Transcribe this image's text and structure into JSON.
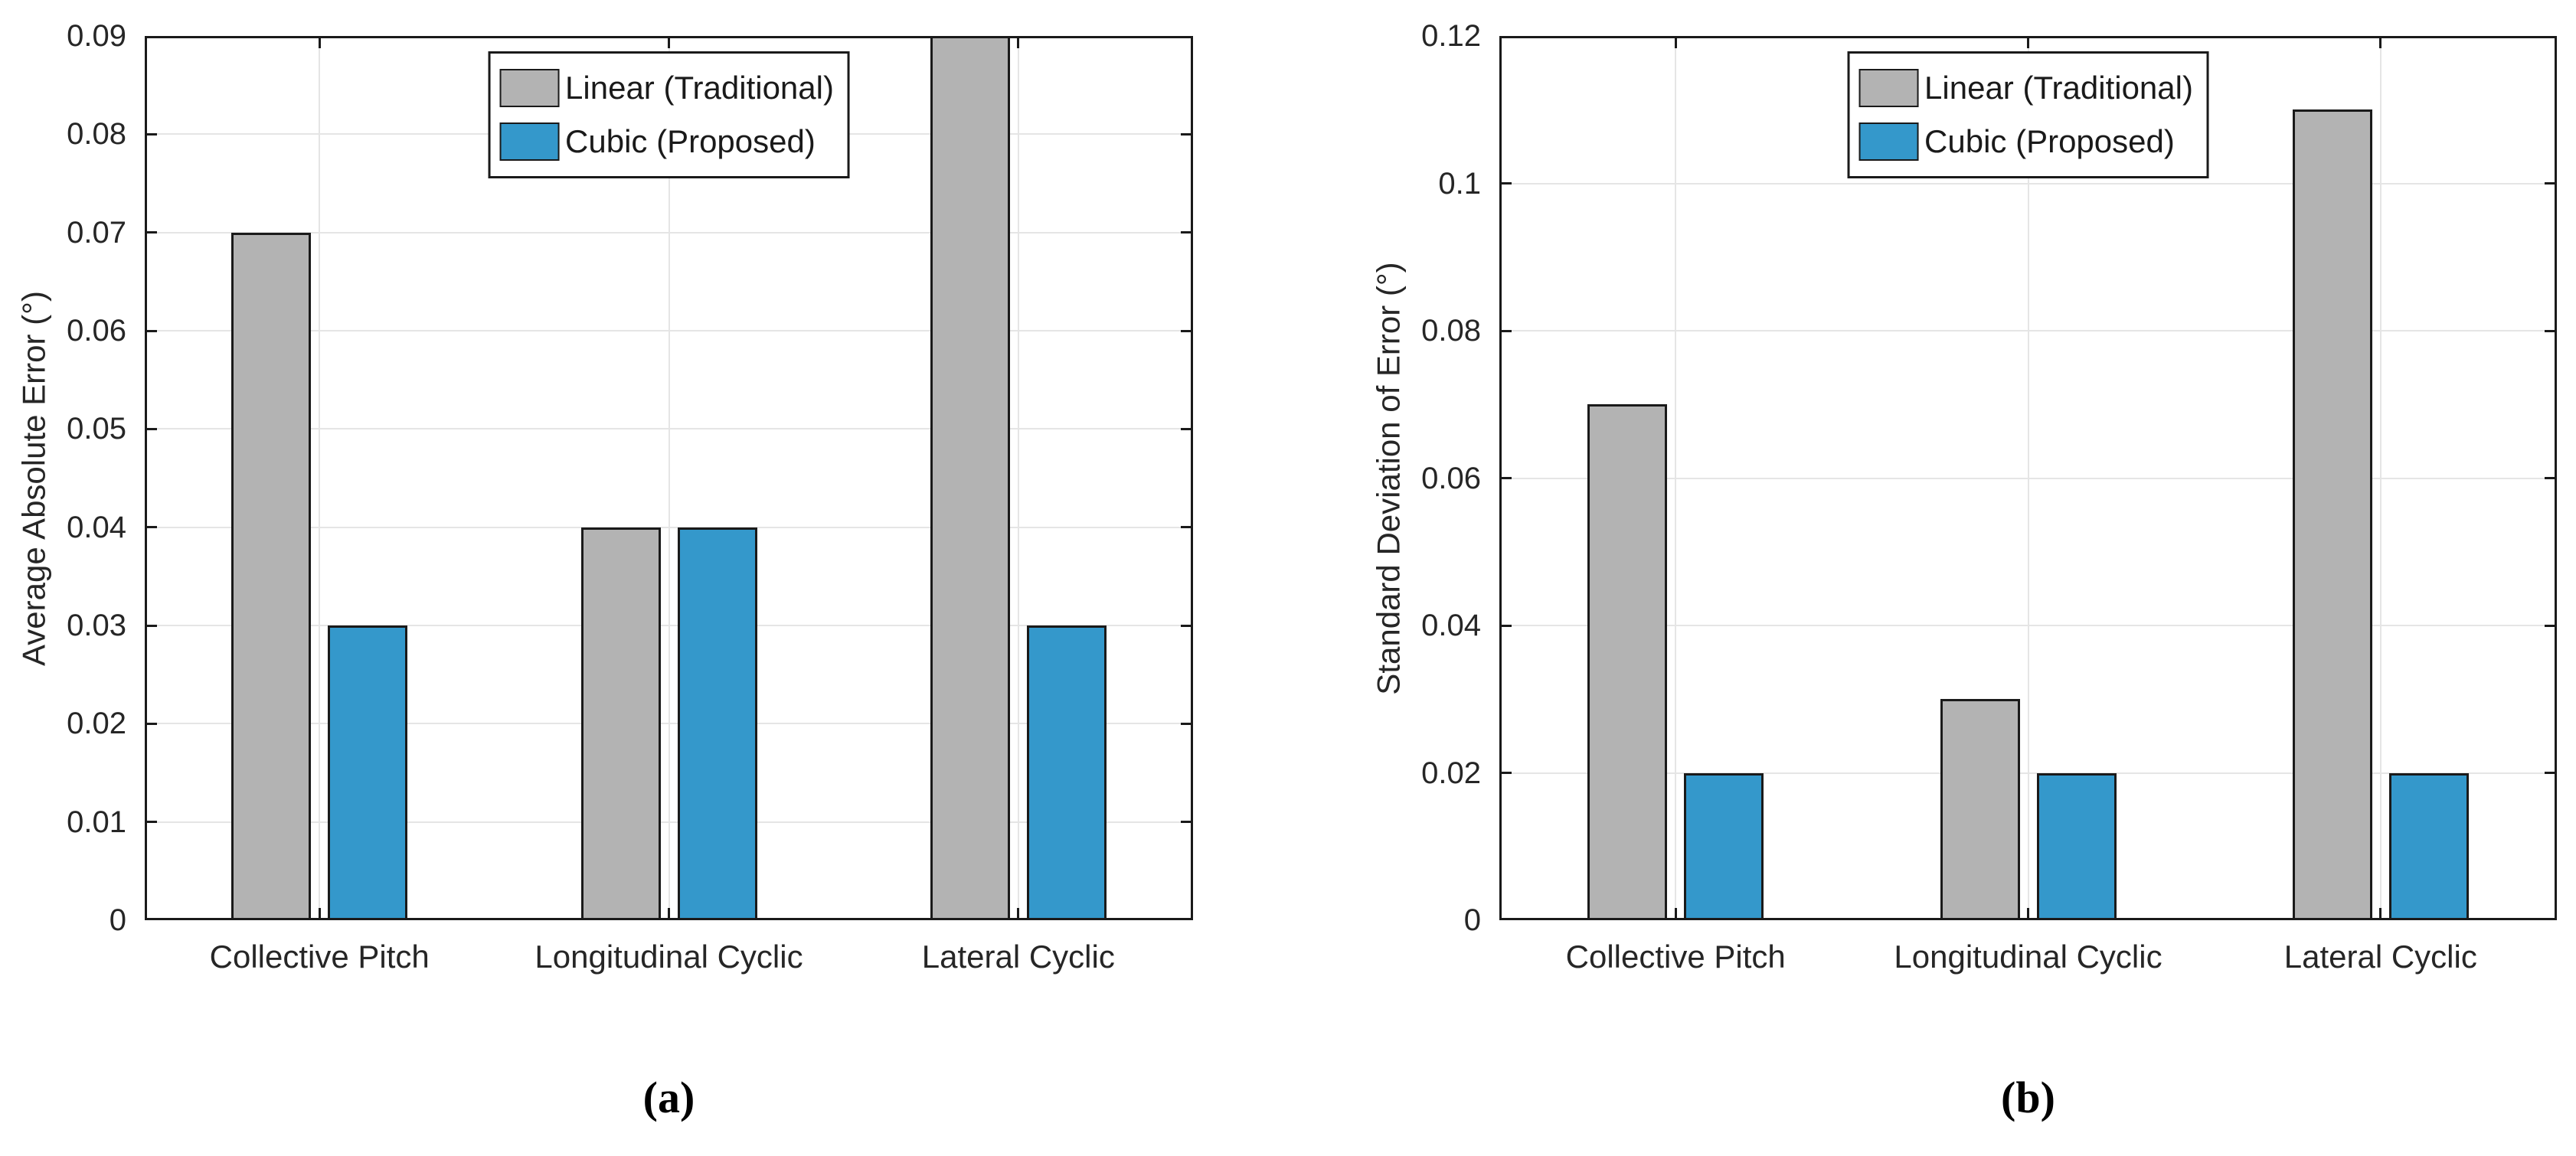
{
  "figure": {
    "captions": {
      "a": "(a)",
      "b": "(b)"
    }
  },
  "colors": {
    "background": "#FFFFFF",
    "linear_fill": "#B3B3B3",
    "cubic_fill": "#3498CB",
    "bar_edge": "#1A1A1A",
    "axis": "#1A1A1A",
    "tick_text": "#262626",
    "grid": "#E5E5E5"
  },
  "chart_data": [
    {
      "type": "bar",
      "panel": "a",
      "title": "",
      "xlabel": "",
      "ylabel": "Average Absolute Error (°)",
      "categories": [
        "Collective Pitch",
        "Longitudinal Cyclic",
        "Lateral Cyclic"
      ],
      "series": [
        {
          "name": "Linear (Traditional)",
          "color_key": "linear_fill",
          "values": [
            0.07,
            0.04,
            0.09
          ]
        },
        {
          "name": "Cubic (Proposed)",
          "color_key": "cubic_fill",
          "values": [
            0.03,
            0.04,
            0.03
          ]
        }
      ],
      "ylim": [
        0,
        0.09
      ],
      "ytick_values": [
        0,
        0.01,
        0.02,
        0.03,
        0.04,
        0.05,
        0.06,
        0.07,
        0.08,
        0.09
      ],
      "ytick_labels": [
        "0",
        "0.01",
        "0.02",
        "0.03",
        "0.04",
        "0.05",
        "0.06",
        "0.07",
        "0.08",
        "0.09"
      ],
      "grid": true,
      "legend_position": "top-center"
    },
    {
      "type": "bar",
      "panel": "b",
      "title": "",
      "xlabel": "",
      "ylabel": "Standard Deviation of Error (°)",
      "categories": [
        "Collective Pitch",
        "Longitudinal Cyclic",
        "Lateral Cyclic"
      ],
      "series": [
        {
          "name": "Linear (Traditional)",
          "color_key": "linear_fill",
          "values": [
            0.07,
            0.03,
            0.11
          ]
        },
        {
          "name": "Cubic (Proposed)",
          "color_key": "cubic_fill",
          "values": [
            0.02,
            0.02,
            0.02
          ]
        }
      ],
      "ylim": [
        0,
        0.12
      ],
      "ytick_values": [
        0,
        0.02,
        0.04,
        0.06,
        0.08,
        0.1,
        0.12
      ],
      "ytick_labels": [
        "0",
        "0.02",
        "0.04",
        "0.06",
        "0.08",
        "0.1",
        "0.12"
      ],
      "grid": true,
      "legend_position": "top-center"
    }
  ]
}
